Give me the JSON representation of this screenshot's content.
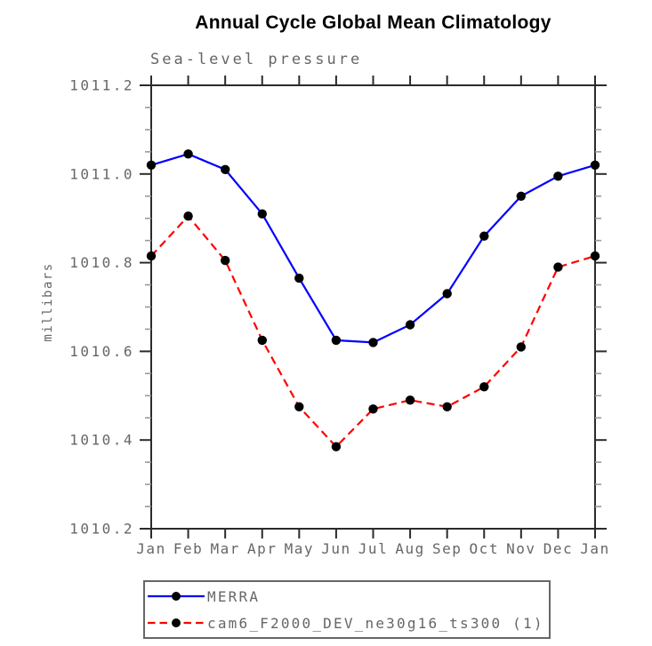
{
  "chart_data": {
    "type": "line",
    "title": "Annual Cycle Global Mean Climatology",
    "subtitle": "Sea-level pressure",
    "ylabel": "millibars",
    "categories": [
      "Jan",
      "Feb",
      "Mar",
      "Apr",
      "May",
      "Jun",
      "Jul",
      "Aug",
      "Sep",
      "Oct",
      "Nov",
      "Dec",
      "Jan"
    ],
    "ylim": [
      1010.2,
      1011.2
    ],
    "ytick_step": 0.2,
    "yminor_step": 0.05,
    "grid": false,
    "legend_position": "bottom-left",
    "series": [
      {
        "name": "MERRA",
        "color": "#0000ff",
        "line_style": "solid",
        "marker": "filled-circle",
        "marker_color": "#000000",
        "values": [
          1011.02,
          1011.045,
          1011.01,
          1010.91,
          1010.765,
          1010.625,
          1010.62,
          1010.66,
          1010.73,
          1010.86,
          1010.95,
          1010.995,
          1011.02
        ]
      },
      {
        "name": "cam6_F2000_DEV_ne30g16_ts300 (1)",
        "color": "#ff0000",
        "line_style": "dashed",
        "marker": "filled-circle",
        "marker_color": "#000000",
        "values": [
          1010.815,
          1010.905,
          1010.805,
          1010.625,
          1010.475,
          1010.385,
          1010.47,
          1010.49,
          1010.475,
          1010.52,
          1010.61,
          1010.79,
          1010.815
        ]
      }
    ]
  },
  "colors": {
    "axis": "#2b2b2b",
    "minor_tick": "#999999",
    "label_text": "#666666"
  }
}
